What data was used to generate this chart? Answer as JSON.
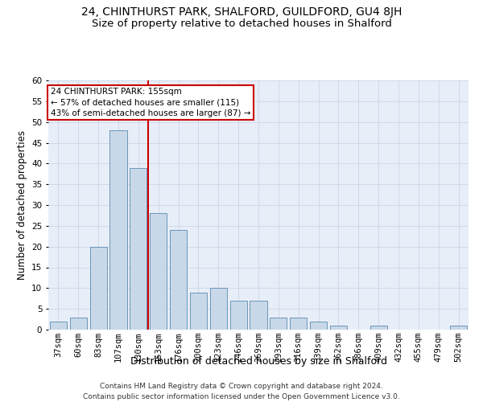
{
  "title": "24, CHINTHURST PARK, SHALFORD, GUILDFORD, GU4 8JH",
  "subtitle": "Size of property relative to detached houses in Shalford",
  "xlabel": "Distribution of detached houses by size in Shalford",
  "ylabel": "Number of detached properties",
  "categories": [
    "37sqm",
    "60sqm",
    "83sqm",
    "107sqm",
    "130sqm",
    "153sqm",
    "176sqm",
    "200sqm",
    "223sqm",
    "246sqm",
    "269sqm",
    "293sqm",
    "316sqm",
    "339sqm",
    "362sqm",
    "386sqm",
    "409sqm",
    "432sqm",
    "455sqm",
    "479sqm",
    "502sqm"
  ],
  "values": [
    2,
    3,
    20,
    48,
    39,
    28,
    24,
    9,
    10,
    7,
    7,
    3,
    3,
    2,
    1,
    0,
    1,
    0,
    0,
    0,
    1
  ],
  "bar_color": "#c8d8e8",
  "bar_edge_color": "#5a8ab0",
  "vline_idx": 4.5,
  "vline_color": "#cc0000",
  "annotation_text": "24 CHINTHURST PARK: 155sqm\n← 57% of detached houses are smaller (115)\n43% of semi-detached houses are larger (87) →",
  "annotation_box_color": "#ffffff",
  "annotation_box_edge": "#cc0000",
  "grid_color": "#ccd6e8",
  "bg_color": "#e8eef8",
  "ylim": [
    0,
    60
  ],
  "yticks": [
    0,
    5,
    10,
    15,
    20,
    25,
    30,
    35,
    40,
    45,
    50,
    55,
    60
  ],
  "footer": "Contains HM Land Registry data © Crown copyright and database right 2024.\nContains public sector information licensed under the Open Government Licence v3.0.",
  "title_fontsize": 10,
  "subtitle_fontsize": 9.5,
  "xlabel_fontsize": 9,
  "ylabel_fontsize": 8.5,
  "tick_fontsize": 7.5,
  "footer_fontsize": 6.5
}
